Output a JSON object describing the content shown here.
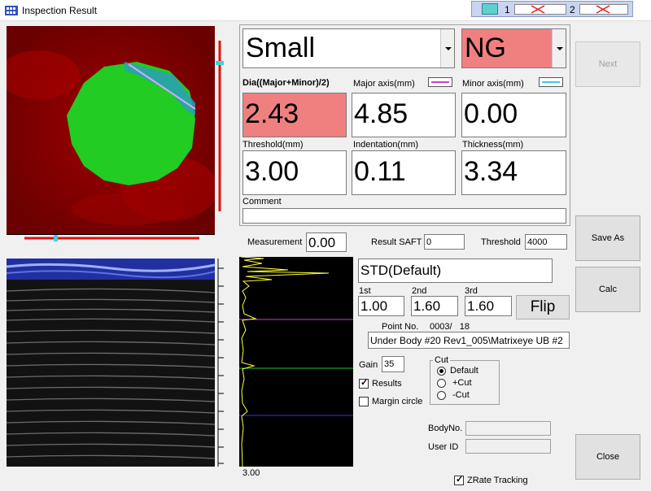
{
  "window": {
    "title": "Inspection Result"
  },
  "indicator": {
    "cells": [
      "1",
      "2"
    ]
  },
  "colors": {
    "ng_bg": "#f08080",
    "major_axis": "#d040d0",
    "minor_axis": "#40c8e0",
    "cscan_bg": "#8b0000",
    "defect": "#22cc22"
  },
  "size_combo": {
    "value": "Small"
  },
  "judge_combo": {
    "value": "NG"
  },
  "labels": {
    "dia": "Dia((Major+Minor)/2)",
    "major": "Major axis(mm)",
    "minor": "Minor axis(mm)",
    "threshold": "Threshold(mm)",
    "indentation": "Indentation(mm)",
    "thickness": "Thickness(mm)",
    "comment": "Comment",
    "measurement": "Measurement",
    "result_saft": "Result SAFT",
    "threshold_small": "Threshold",
    "first": "1st",
    "second": "2nd",
    "third": "3rd",
    "point_no": "Point No.",
    "gain": "Gain",
    "cut": "Cut",
    "body_no": "BodyNo.",
    "user_id": "User ID",
    "ascan_scale": "3.00"
  },
  "values": {
    "dia": "2.43",
    "major": "4.85",
    "minor": "0.00",
    "threshold": "3.00",
    "indentation": "0.11",
    "thickness": "3.34",
    "comment": "",
    "measurement": "0.00",
    "result_saft": "0",
    "threshold_small": "4000",
    "std": "STD(Default)",
    "first": "1.00",
    "second": "1.60",
    "third": "1.60",
    "point_no": "0003/   18",
    "file_path": "Under Body #20 Rev1_005\\Matrixeye UB #2",
    "gain": "35",
    "body_no": "",
    "user_id": ""
  },
  "buttons": {
    "next": "Next",
    "save_as": "Save As",
    "calc": "Calc",
    "close": "Close",
    "flip": "Flip"
  },
  "checks": {
    "results": "Results",
    "margin_circle": "Margin circle",
    "zrate": "ZRate Tracking"
  },
  "cut_options": [
    "Default",
    "+Cut",
    "-Cut"
  ]
}
